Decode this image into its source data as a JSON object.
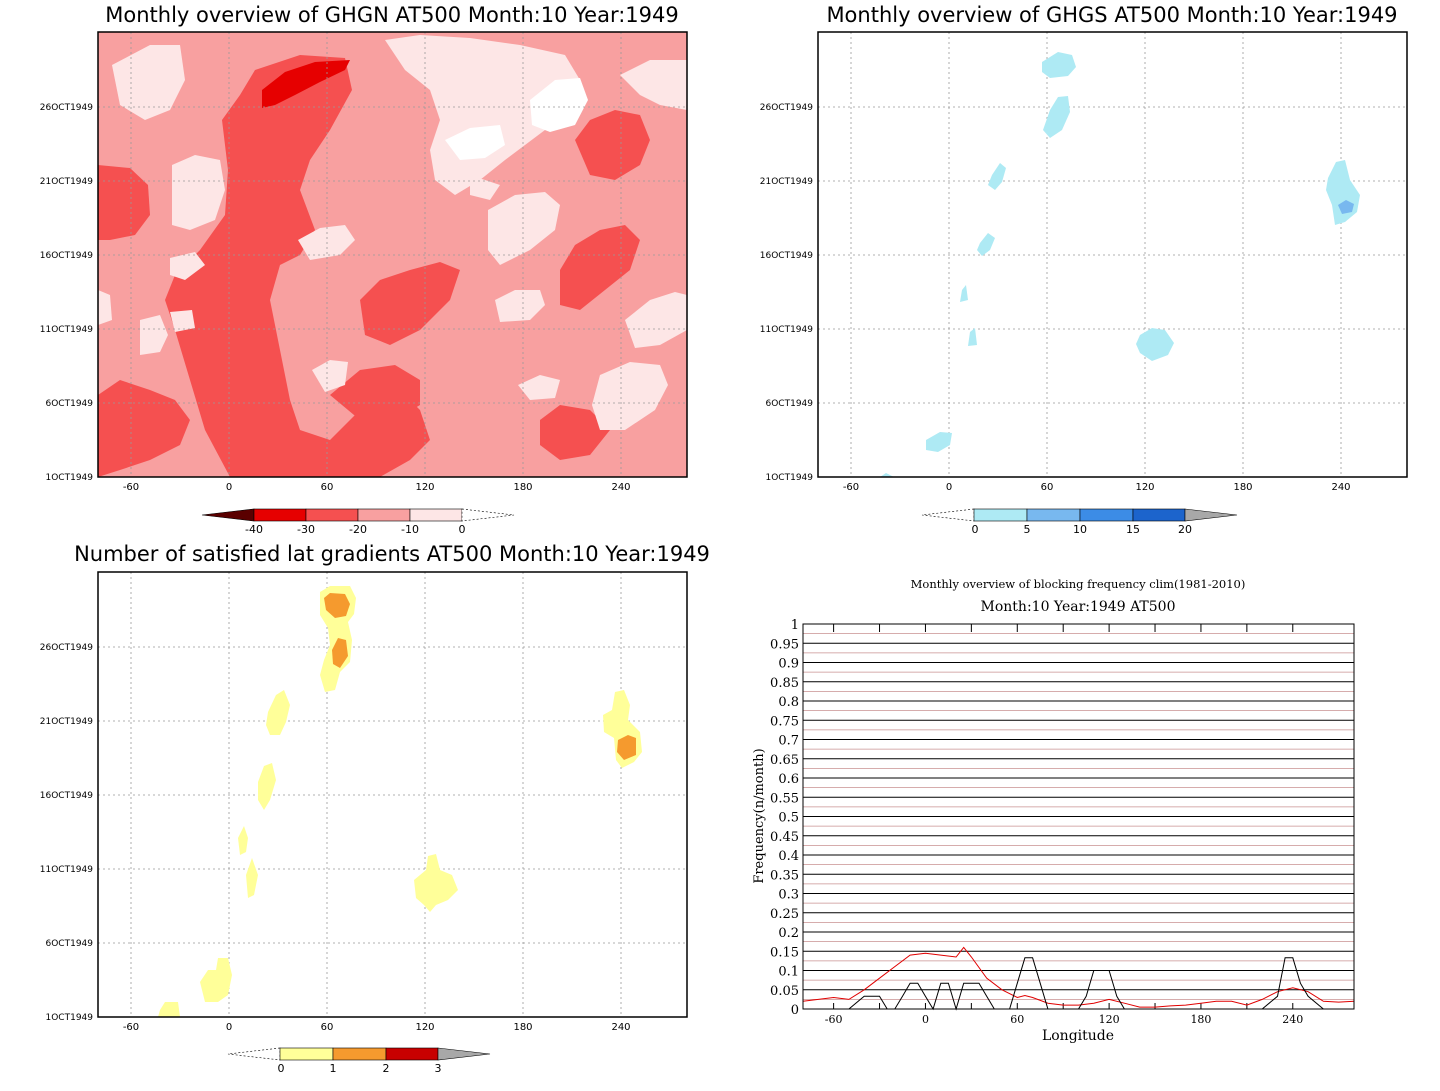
{
  "chart_data": [
    {
      "id": "ghgn",
      "type": "heatmap",
      "title": "Monthly overview of GHGN AT500 Month:10 Year:1949",
      "x_ticks": [
        "-60",
        "0",
        "60",
        "120",
        "180",
        "240"
      ],
      "y_ticks": [
        "1OCT1949",
        "6OCT1949",
        "11OCT1949",
        "16OCT1949",
        "21OCT1949",
        "26OCT1949"
      ],
      "xlim": [
        -80,
        280
      ],
      "ylim": [
        1,
        31
      ],
      "colorbar": {
        "labels": [
          "-40",
          "-30",
          "-20",
          "-10",
          "0"
        ],
        "colors": [
          "#5a0000",
          "#e60000",
          "#f55050",
          "#f8a0a0",
          "#fde6e6"
        ]
      }
    },
    {
      "id": "ghgs",
      "type": "heatmap",
      "title": "Monthly overview of GHGS AT500 Month:10 Year:1949",
      "x_ticks": [
        "-60",
        "0",
        "60",
        "120",
        "180",
        "240"
      ],
      "y_ticks": [
        "1OCT1949",
        "6OCT1949",
        "11OCT1949",
        "16OCT1949",
        "21OCT1949",
        "26OCT1949"
      ],
      "xlim": [
        -80,
        280
      ],
      "ylim": [
        1,
        31
      ],
      "colorbar": {
        "labels": [
          "0",
          "5",
          "10",
          "15",
          "20"
        ],
        "colors": [
          "#aeeaf4",
          "#78b8ef",
          "#3c8ce6",
          "#1c64cc",
          "#a8a8a8"
        ]
      }
    },
    {
      "id": "satisfied",
      "type": "heatmap",
      "title": "Number of satisfied lat gradients AT500 Month:10 Year:1949",
      "x_ticks": [
        "-60",
        "0",
        "60",
        "120",
        "180",
        "240"
      ],
      "y_ticks": [
        "1OCT1949",
        "6OCT1949",
        "11OCT1949",
        "16OCT1949",
        "21OCT1949",
        "26OCT1949"
      ],
      "xlim": [
        -80,
        280
      ],
      "ylim": [
        1,
        31
      ],
      "colorbar": {
        "labels": [
          "0",
          "1",
          "2",
          "3"
        ],
        "colors": [
          "#ffff99",
          "#f59a2e",
          "#c80000",
          "#a8a8a8"
        ]
      }
    },
    {
      "id": "blocking",
      "type": "line",
      "title": "Monthly overview of blocking frequency clim(1981-2010)",
      "subtitle": "Month:10 Year:1949  AT500",
      "xlabel": "Longitude",
      "ylabel": "Frequency(n/month)",
      "xlim": [
        -80,
        280
      ],
      "ylim": [
        0,
        1
      ],
      "x_ticks": [
        "-60",
        "0",
        "60",
        "120",
        "180",
        "240"
      ],
      "y_ticks": [
        "0",
        "0.05",
        "0.1",
        "0.15",
        "0.2",
        "0.25",
        "0.3",
        "0.35",
        "0.4",
        "0.45",
        "0.5",
        "0.55",
        "0.6",
        "0.65",
        "0.7",
        "0.75",
        "0.8",
        "0.85",
        "0.9",
        "0.95",
        "1"
      ],
      "series": [
        {
          "color": "#e00000",
          "x": [
            -80,
            -70,
            -60,
            -50,
            -40,
            -30,
            -20,
            -10,
            0,
            10,
            20,
            25,
            30,
            40,
            50,
            60,
            65,
            70,
            80,
            90,
            100,
            110,
            120,
            130,
            140,
            150,
            160,
            170,
            180,
            190,
            200,
            210,
            220,
            230,
            240,
            250,
            260,
            270,
            280
          ],
          "y": [
            0.02,
            0.025,
            0.03,
            0.025,
            0.05,
            0.08,
            0.11,
            0.14,
            0.145,
            0.14,
            0.135,
            0.16,
            0.135,
            0.08,
            0.05,
            0.03,
            0.035,
            0.03,
            0.015,
            0.01,
            0.01,
            0.015,
            0.025,
            0.015,
            0.005,
            0.005,
            0.008,
            0.01,
            0.015,
            0.02,
            0.02,
            0.01,
            0.025,
            0.045,
            0.055,
            0.045,
            0.02,
            0.018,
            0.02
          ]
        },
        {
          "color": "#000000",
          "x": [
            -80,
            -60,
            -50,
            -40,
            -35,
            -30,
            -25,
            -20,
            -15,
            -10,
            -5,
            0,
            5,
            10,
            15,
            20,
            25,
            30,
            35,
            40,
            45,
            50,
            55,
            60,
            65,
            70,
            75,
            80,
            90,
            100,
            105,
            110,
            115,
            120,
            125,
            130,
            140,
            150,
            160,
            170,
            180,
            190,
            200,
            210,
            220,
            230,
            235,
            240,
            245,
            250,
            260,
            270,
            280
          ],
          "y": [
            0,
            0,
            0,
            0.033,
            0.033,
            0.033,
            0,
            0,
            0.033,
            0.067,
            0.067,
            0.033,
            0,
            0.067,
            0.067,
            0,
            0.067,
            0.067,
            0.067,
            0.033,
            0,
            0,
            0,
            0.067,
            0.133,
            0.133,
            0.067,
            0,
            0,
            0,
            0.033,
            0.1,
            0.1,
            0.1,
            0.033,
            0,
            0,
            0,
            0,
            0,
            0,
            0,
            0,
            0,
            0,
            0.033,
            0.133,
            0.133,
            0.067,
            0.033,
            0,
            0,
            0
          ]
        }
      ]
    }
  ]
}
